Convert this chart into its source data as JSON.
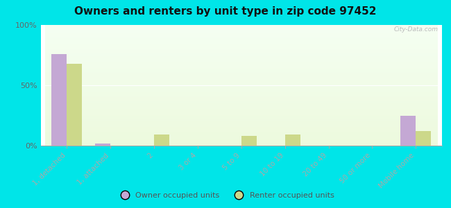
{
  "title": "Owners and renters by unit type in zip code 97452",
  "categories": [
    "1, detached",
    "1, attached",
    "2",
    "3 or 4",
    "5 to 9",
    "10 to 19",
    "20 to 49",
    "50 or more",
    "Mobile home"
  ],
  "owner_values": [
    76,
    2,
    0,
    0,
    0,
    0,
    0,
    0,
    25
  ],
  "renter_values": [
    68,
    0,
    9,
    0,
    8,
    9,
    0,
    0,
    12
  ],
  "owner_color": "#c4a8d4",
  "renter_color": "#ccd88a",
  "background_color": "#00e5e8",
  "ylim": [
    0,
    100
  ],
  "yticks": [
    0,
    50,
    100
  ],
  "ytick_labels": [
    "0%",
    "50%",
    "100%"
  ],
  "bar_width": 0.35,
  "legend_owner": "Owner occupied units",
  "legend_renter": "Renter occupied units",
  "watermark": "City-Data.com"
}
